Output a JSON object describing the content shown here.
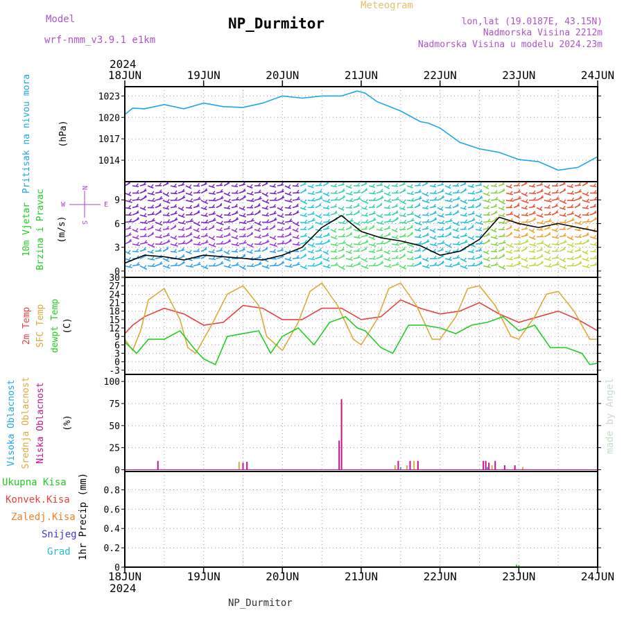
{
  "header": {
    "model_label": "Model",
    "model_name": "wrf-nmm_v3.9.1  e1km",
    "station": "NP_Durmitor",
    "product": "Meteogram",
    "coords": "lon,lat (19.0187E, 43.15N)",
    "elevation": "Nadmorska Visina 2212m",
    "model_elevation": "Nadmorska Visina u modelu 2024.23m",
    "year": "2024",
    "footer_station": "NP_Durmitor",
    "credit": "made by Angel"
  },
  "colors": {
    "pressure": "#1ea5e8",
    "t2m": "#e84040",
    "tsfc": "#e0a838",
    "dewpt": "#22cc22",
    "cloud_high": "#1ea5e8",
    "cloud_mid": "#e0a838",
    "cloud_low": "#c0158a",
    "precip_total": "#22cc22",
    "precip_conv": "#e84040",
    "precip_frozen": "#f08028",
    "snow": "#3a3ae0",
    "graupel": "#22c0c0",
    "wind_axis": "#aa44cc",
    "title_purple": "#aa55cc",
    "title_orange": "#e8c070"
  },
  "chart_data": [
    {
      "id": "pressure",
      "type": "line",
      "ylabel": "Pritisak na nivou mora",
      "unit": "(hPa)",
      "x_categories": [
        "18JUN",
        "19JUN",
        "20JUN",
        "21JUN",
        "22JUN",
        "23JUN",
        "24JUN"
      ],
      "yticks": [
        1014,
        1017,
        1020,
        1023
      ],
      "ylim": [
        1011.0,
        1024.3
      ],
      "series": [
        {
          "key": "pressure",
          "color": "#1ea5e8",
          "x": [
            0,
            0.1,
            0.25,
            0.5,
            0.75,
            1.0,
            1.25,
            1.5,
            1.75,
            2.0,
            2.25,
            2.5,
            2.75,
            2.95,
            3.05,
            3.2,
            3.5,
            3.75,
            3.85,
            4.0,
            4.25,
            4.5,
            4.75,
            5.0,
            5.25,
            5.5,
            5.75,
            6.0
          ],
          "y": [
            1020.4,
            1021.3,
            1021.2,
            1021.8,
            1021.2,
            1022.0,
            1021.5,
            1021.4,
            1022.0,
            1023.0,
            1022.7,
            1023.0,
            1023.0,
            1023.7,
            1023.4,
            1022.2,
            1020.9,
            1019.4,
            1019.2,
            1018.5,
            1016.5,
            1015.6,
            1015.1,
            1014.1,
            1013.8,
            1012.6,
            1013.0,
            1014.5
          ]
        }
      ]
    },
    {
      "id": "wind",
      "type": "line",
      "ylabel": "10m Vjetar",
      "ylabel2": "Brzina i Pravac",
      "unit": "(m/s)",
      "compass": [
        "N",
        "E",
        "S",
        "W"
      ],
      "yticks": [
        0,
        3,
        6,
        9
      ],
      "ylim": [
        -0.8,
        11.3
      ],
      "series": [
        {
          "key": "wind_speed",
          "color": "#000000",
          "x": [
            0,
            0.25,
            0.5,
            0.75,
            1.0,
            1.25,
            1.5,
            1.75,
            2.0,
            2.25,
            2.5,
            2.75,
            3.0,
            3.25,
            3.5,
            3.75,
            4.0,
            4.25,
            4.5,
            4.75,
            5.0,
            5.25,
            5.5,
            5.75,
            6.0
          ],
          "y": [
            1.0,
            2.0,
            1.8,
            1.4,
            2.0,
            1.8,
            1.6,
            1.4,
            2.0,
            3.0,
            5.5,
            7.0,
            5.0,
            4.2,
            3.8,
            3.2,
            2.0,
            2.5,
            4.0,
            6.8,
            6.0,
            5.5,
            6.0,
            5.5,
            5.0
          ]
        }
      ]
    },
    {
      "id": "temperature",
      "type": "line",
      "ylabel": "2m Temp",
      "ylabel2": "SFC Temp",
      "ylabel3": "dewpt Temp",
      "unit": "(C)",
      "yticks": [
        -3,
        0,
        3,
        6,
        9,
        12,
        15,
        18,
        21,
        24,
        27,
        30
      ],
      "ylim": [
        -4.5,
        30.0
      ],
      "series": [
        {
          "key": "t2m",
          "color": "#e84040",
          "x": [
            0,
            0.1,
            0.25,
            0.5,
            0.75,
            1.0,
            1.25,
            1.5,
            1.75,
            2.0,
            2.25,
            2.5,
            2.75,
            3.0,
            3.25,
            3.5,
            3.75,
            4.0,
            4.25,
            4.5,
            4.75,
            5.0,
            5.25,
            5.5,
            5.75,
            6.0
          ],
          "y": [
            10.0,
            13.0,
            16.0,
            19.0,
            17.0,
            13.0,
            14.0,
            20.0,
            19.0,
            15.0,
            15.0,
            19.0,
            19.0,
            15.0,
            16.0,
            22.0,
            19.0,
            17.0,
            18.0,
            21.0,
            17.0,
            14.0,
            16.0,
            18.0,
            15.0,
            11.0
          ]
        },
        {
          "key": "tsfc",
          "color": "#e0a838",
          "x": [
            0,
            0.1,
            0.2,
            0.3,
            0.5,
            0.7,
            0.8,
            0.9,
            1.1,
            1.3,
            1.5,
            1.7,
            1.8,
            2.0,
            2.2,
            2.35,
            2.5,
            2.7,
            2.9,
            3.0,
            3.2,
            3.35,
            3.5,
            3.7,
            3.9,
            4.0,
            4.2,
            4.35,
            4.5,
            4.7,
            4.9,
            5.0,
            5.2,
            5.35,
            5.5,
            5.7,
            5.9,
            6.0
          ],
          "y": [
            8.0,
            4.0,
            11.0,
            22.0,
            26.0,
            15.0,
            5.0,
            3.0,
            13.0,
            24.0,
            27.0,
            20.0,
            9.0,
            4.0,
            14.0,
            25.0,
            28.0,
            20.0,
            8.0,
            6.0,
            15.0,
            26.0,
            28.0,
            20.0,
            8.0,
            8.0,
            16.0,
            26.0,
            27.0,
            20.0,
            9.0,
            8.0,
            16.0,
            24.0,
            25.0,
            18.0,
            8.0,
            8.0
          ]
        },
        {
          "key": "dewpt",
          "color": "#22cc22",
          "x": [
            0,
            0.15,
            0.3,
            0.5,
            0.7,
            0.9,
            1.0,
            1.15,
            1.3,
            1.5,
            1.7,
            1.85,
            2.0,
            2.2,
            2.4,
            2.6,
            2.8,
            2.95,
            3.05,
            3.25,
            3.4,
            3.6,
            3.8,
            4.0,
            4.2,
            4.4,
            4.6,
            4.8,
            5.0,
            5.2,
            5.4,
            5.6,
            5.8,
            5.9,
            6.0
          ],
          "y": [
            7.0,
            3.0,
            8.0,
            8.0,
            11.0,
            4.0,
            1.0,
            -1.0,
            9.0,
            10.0,
            11.0,
            3.0,
            9.0,
            12.0,
            6.0,
            14.0,
            16.0,
            12.0,
            11.0,
            5.0,
            3.0,
            13.0,
            13.0,
            12.0,
            10.0,
            13.0,
            14.0,
            16.0,
            11.0,
            13.0,
            5.0,
            5.0,
            3.0,
            -1.0,
            -0.5
          ]
        }
      ]
    },
    {
      "id": "clouds",
      "type": "bar",
      "ylabel": "Visoka Oblacnost",
      "ylabel2": "Srednja Oblacnost",
      "ylabel3": "Niska Oblacnost",
      "unit": "(%)",
      "yticks": [
        0,
        25,
        50,
        75,
        100
      ],
      "ylim": [
        -2,
        108
      ],
      "series": [
        {
          "key": "cloud_low",
          "color": "#c0158a",
          "x": [
            0.42,
            1.5,
            1.55,
            2.72,
            2.75,
            3.47,
            3.62,
            3.72,
            4.55,
            4.58,
            4.62,
            4.7,
            4.82,
            4.95
          ],
          "y": [
            10,
            8,
            9,
            33,
            80,
            10,
            10,
            10,
            10,
            10,
            8,
            10,
            5,
            5
          ]
        },
        {
          "key": "cloud_mid",
          "color": "#e0a838",
          "x": [
            1.45,
            3.43,
            3.58,
            3.67,
            4.66,
            5.05
          ],
          "y": [
            9,
            5,
            5,
            10,
            5,
            3
          ]
        },
        {
          "key": "cloud_high",
          "color": "#1ea5e8",
          "x": [
            3.5,
            4.6
          ],
          "y": [
            3,
            3
          ]
        }
      ]
    },
    {
      "id": "precip",
      "type": "bar",
      "labels": [
        "Ukupna Kisa",
        "Konvek.Kisa",
        "Zaledj.Kisa",
        "Snijeg",
        "Grad"
      ],
      "unit": "1hr Precip (mm)",
      "yticks": [
        0,
        0.2,
        0.4,
        0.6,
        0.8
      ],
      "ylim": [
        0,
        0.99
      ],
      "series": [
        {
          "key": "precip_total",
          "color": "#22cc22",
          "x": [
            2.7,
            4.97,
            5.0
          ],
          "y": [
            0.003,
            0.025,
            0.02
          ]
        }
      ]
    }
  ]
}
